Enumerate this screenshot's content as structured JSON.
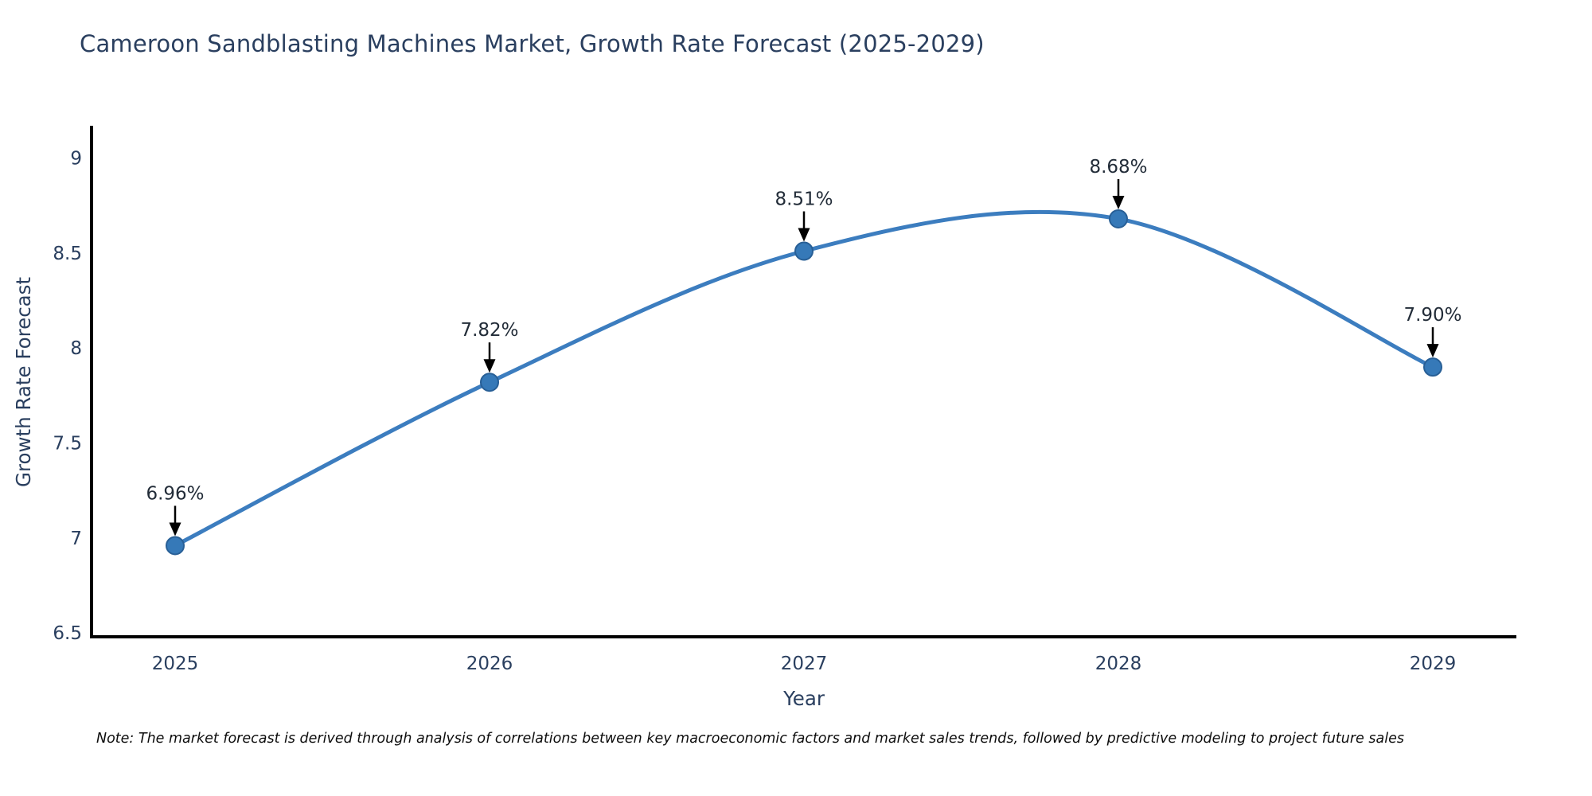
{
  "page": {
    "background": "#ffffff"
  },
  "note": "Note: The market forecast is derived through analysis of correlations between key macroeconomic factors and market sales trends, followed by predictive modeling to project future sales",
  "chart_data": {
    "type": "line",
    "title": "Cameroon Sandblasting Machines Market, Growth Rate Forecast (2025-2029)",
    "xlabel": "Year",
    "ylabel": "Growth Rate Forecast",
    "categories": [
      "2025",
      "2026",
      "2027",
      "2028",
      "2029"
    ],
    "values": [
      6.96,
      7.82,
      8.51,
      8.68,
      7.9
    ],
    "annotations": [
      "6.96%",
      "7.82%",
      "8.51%",
      "8.68%",
      "7.90%"
    ],
    "yticks": [
      6.5,
      7,
      7.5,
      8,
      8.5,
      9
    ],
    "ylim": [
      6.48,
      9.17
    ],
    "grid": false,
    "legend": "none",
    "line_shape": "spline",
    "colors": {
      "line": "#3c7dbf",
      "marker_fill": "#3679b8",
      "marker_edge": "#285f96",
      "axis_line": "#000000",
      "tick_text": "#2a3f5f",
      "annotation_text": "#222c38",
      "annotation_arrow": "#000000",
      "title_text": "#2a3f5f"
    }
  }
}
